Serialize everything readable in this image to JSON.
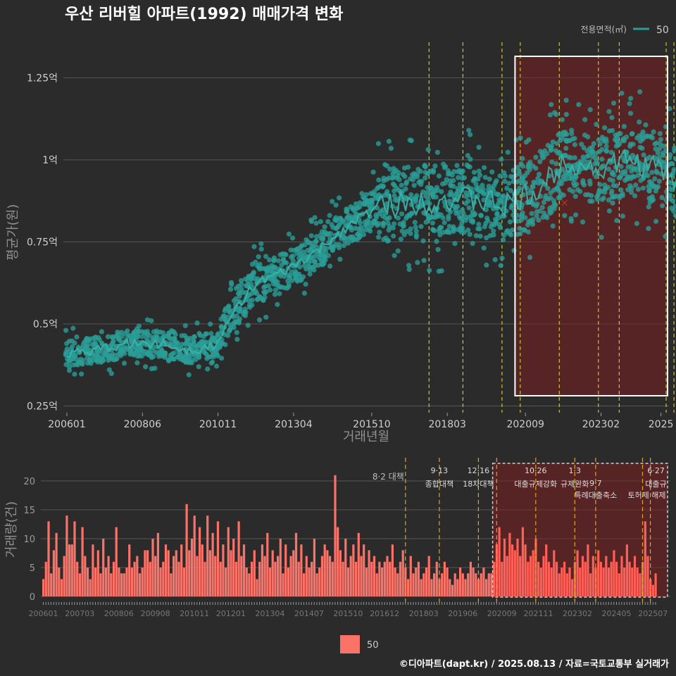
{
  "chart_data": [
    {
      "type": "scatter",
      "title": "우산 리버힐 아파트(1992) 매매가격 변화",
      "xlabel": "거래년월",
      "ylabel": "평균가(원)",
      "legend_title": "전용면적(㎡)",
      "legend_position": "top-right",
      "series": [
        {
          "name": "50",
          "color": "#2a9d97"
        }
      ],
      "x_ticks": [
        "200601",
        "200806",
        "201011",
        "201304",
        "201510",
        "201803",
        "202009",
        "202302",
        "2025"
      ],
      "y_ticks": [
        "0.25억",
        "0.5억",
        "0.75억",
        "1억",
        "1.25억"
      ],
      "ylim": [
        0.22,
        1.35
      ],
      "xlim": [
        "2006-01",
        "2025-08"
      ],
      "trend": [
        {
          "x": "2006-01",
          "y": 0.41
        },
        {
          "x": "2007-01",
          "y": 0.42
        },
        {
          "x": "2008-01",
          "y": 0.44
        },
        {
          "x": "2009-01",
          "y": 0.44
        },
        {
          "x": "2010-01",
          "y": 0.42
        },
        {
          "x": "2010-11",
          "y": 0.44
        },
        {
          "x": "2011-06",
          "y": 0.55
        },
        {
          "x": "2012-01",
          "y": 0.62
        },
        {
          "x": "2013-01",
          "y": 0.66
        },
        {
          "x": "2014-01",
          "y": 0.72
        },
        {
          "x": "2015-01",
          "y": 0.8
        },
        {
          "x": "2016-01",
          "y": 0.86
        },
        {
          "x": "2017-01",
          "y": 0.87
        },
        {
          "x": "2018-01",
          "y": 0.88
        },
        {
          "x": "2019-01",
          "y": 0.88
        },
        {
          "x": "2020-01",
          "y": 0.86
        },
        {
          "x": "2021-01",
          "y": 0.9
        },
        {
          "x": "2022-01",
          "y": 1.0
        },
        {
          "x": "2023-01",
          "y": 0.97
        },
        {
          "x": "2024-01",
          "y": 1.0
        },
        {
          "x": "2025-01",
          "y": 0.97
        },
        {
          "x": "2025-08",
          "y": 0.92
        }
      ],
      "outlier_mark": {
        "x": "2021-12",
        "y": 0.87,
        "symbol": "×",
        "color": "#cc2b2b"
      },
      "highlight_range": [
        "2020-05",
        "2025-08"
      ],
      "grid": true
    },
    {
      "type": "bar",
      "ylabel": "거래량(건)",
      "y_ticks": [
        "0",
        "5",
        "10",
        "15",
        "20"
      ],
      "ylim": [
        0,
        23
      ],
      "x_ticks": [
        "200601",
        "200703",
        "200806",
        "200908",
        "201011",
        "201201",
        "201304",
        "201407",
        "201510",
        "201612",
        "201803",
        "201906",
        "202009",
        "202111",
        "202302",
        "202405",
        "202507"
      ],
      "series": [
        {
          "name": "50",
          "color": "#fa7268"
        }
      ],
      "monthly_counts_by_year": [
        {
          "year": 2006,
          "values": [
            3,
            6,
            13,
            4,
            8,
            11,
            5,
            3,
            7,
            14,
            9,
            9
          ]
        },
        {
          "year": 2007,
          "values": [
            13,
            6,
            4,
            12,
            7,
            5,
            3,
            9,
            5,
            8,
            4,
            10
          ]
        },
        {
          "year": 2008,
          "values": [
            5,
            7,
            4,
            6,
            12,
            5,
            4,
            4,
            5,
            9,
            5,
            6
          ]
        },
        {
          "year": 2009,
          "values": [
            7,
            4,
            5,
            8,
            8,
            6,
            10,
            7,
            11,
            5,
            6,
            9
          ]
        },
        {
          "year": 2010,
          "values": [
            8,
            4,
            7,
            8,
            6,
            9,
            5,
            16,
            8,
            10,
            14,
            7
          ]
        },
        {
          "year": 2011,
          "values": [
            12,
            9,
            6,
            14,
            8,
            11,
            7,
            13,
            6,
            9,
            5,
            12
          ]
        },
        {
          "year": 2012,
          "values": [
            8,
            10,
            6,
            13,
            7,
            9,
            5,
            4,
            6,
            8,
            3,
            6
          ]
        },
        {
          "year": 2013,
          "values": [
            9,
            7,
            11,
            5,
            8,
            6,
            7,
            10,
            4,
            9,
            5,
            7
          ]
        },
        {
          "year": 2014,
          "values": [
            8,
            11,
            6,
            9,
            4,
            7,
            5,
            6,
            10,
            4,
            5,
            7
          ]
        },
        {
          "year": 2015,
          "values": [
            9,
            8,
            7,
            6,
            21,
            12,
            8,
            6,
            10,
            5,
            7,
            9
          ]
        },
        {
          "year": 2016,
          "values": [
            6,
            11,
            7,
            9,
            5,
            8,
            6,
            7,
            4,
            6,
            5,
            6
          ]
        },
        {
          "year": 2017,
          "values": [
            7,
            6,
            9,
            5,
            4,
            6,
            8,
            5,
            3,
            7,
            4,
            5
          ]
        },
        {
          "year": 2018,
          "values": [
            6,
            3,
            4,
            5,
            7,
            3,
            4,
            6,
            3,
            4,
            6,
            5
          ]
        },
        {
          "year": 2019,
          "values": [
            3,
            2,
            4,
            3,
            5,
            4,
            3,
            4,
            6,
            5,
            4,
            3
          ]
        },
        {
          "year": 2020,
          "values": [
            4,
            5,
            3,
            4,
            4,
            6,
            9,
            12,
            6,
            10,
            7,
            11
          ]
        },
        {
          "year": 2021,
          "values": [
            9,
            8,
            10,
            7,
            12,
            9,
            6,
            7,
            8,
            10,
            6,
            5
          ]
        },
        {
          "year": 2022,
          "values": [
            7,
            9,
            6,
            5,
            8,
            6,
            4,
            5,
            6,
            4,
            5,
            3
          ]
        },
        {
          "year": 2023,
          "values": [
            6,
            8,
            5,
            7,
            6,
            9,
            4,
            7,
            5,
            8,
            6,
            5
          ]
        },
        {
          "year": 2024,
          "values": [
            7,
            5,
            6,
            8,
            6,
            4,
            7,
            5,
            9,
            6,
            5,
            7
          ]
        },
        {
          "year": 2025,
          "values": [
            5,
            4,
            6,
            13,
            7,
            3,
            2,
            4
          ]
        }
      ],
      "highlight_range": [
        "2020-06",
        "2025-08"
      ],
      "policy_events": [
        {
          "x": "2017-08",
          "date": "8·2",
          "label": "8·2 대책"
        },
        {
          "x": "2018-09",
          "date": "9·13",
          "label": "종합대책"
        },
        {
          "x": "2019-12",
          "date": "12·16",
          "label": "18차대책"
        },
        {
          "x": "2020-07",
          "date": "",
          "label": ""
        },
        {
          "x": "2021-10",
          "date": "10·26",
          "label": "대출규제강화"
        },
        {
          "x": "2023-01",
          "date": "1·3",
          "label": "규제완화"
        },
        {
          "x": "2023-09",
          "date": "9·7",
          "label": "특례대출축소"
        },
        {
          "x": "2025-03",
          "date": "",
          "label": "토허제 해제"
        },
        {
          "x": "2025-06",
          "date": "6·27",
          "label": "대출규"
        }
      ]
    }
  ],
  "legend_bottom": "50",
  "footer": "©디아파트(dapt.kr) / 2025.08.13 / 자료=국토교통부 실거래가"
}
